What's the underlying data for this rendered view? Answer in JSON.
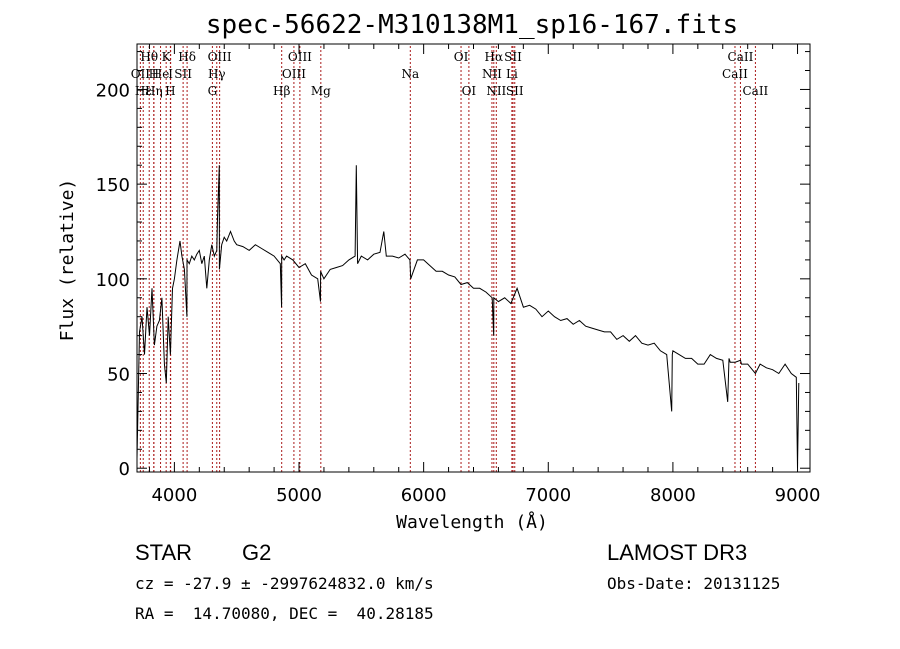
{
  "chart_data": {
    "type": "line",
    "title": "spec-56622-M310138M1_sp16-167.fits",
    "xlabel": "Wavelength (Å)",
    "ylabel": "Flux (relative)",
    "xlim": [
      3700,
      9100
    ],
    "ylim": [
      -2,
      224
    ],
    "xticks": [
      4000,
      5000,
      6000,
      7000,
      8000,
      9000
    ],
    "yticks": [
      0,
      50,
      100,
      150,
      200
    ],
    "grid": false,
    "series": [
      {
        "name": "flux",
        "x": [
          3700,
          3720,
          3740,
          3760,
          3780,
          3800,
          3820,
          3840,
          3860,
          3880,
          3900,
          3920,
          3935,
          3950,
          3968,
          3985,
          4000,
          4020,
          4045,
          4060,
          4080,
          4100,
          4101,
          4120,
          4140,
          4160,
          4180,
          4200,
          4220,
          4240,
          4260,
          4280,
          4300,
          4320,
          4340,
          4345,
          4360,
          4361,
          4380,
          4400,
          4420,
          4450,
          4480,
          4500,
          4550,
          4600,
          4650,
          4700,
          4750,
          4800,
          4850,
          4860,
          4861,
          4880,
          4900,
          4950,
          5000,
          5050,
          5100,
          5150,
          5172,
          5173,
          5200,
          5250,
          5300,
          5350,
          5400,
          5450,
          5460,
          5470,
          5500,
          5550,
          5600,
          5650,
          5680,
          5700,
          5750,
          5800,
          5850,
          5890,
          5896,
          5950,
          6000,
          6050,
          6100,
          6150,
          6200,
          6250,
          6300,
          6350,
          6400,
          6450,
          6500,
          6550,
          6562,
          6563,
          6600,
          6650,
          6700,
          6750,
          6800,
          6850,
          6900,
          6950,
          7000,
          7050,
          7100,
          7150,
          7200,
          7250,
          7300,
          7350,
          7400,
          7450,
          7500,
          7550,
          7600,
          7650,
          7700,
          7750,
          7800,
          7850,
          7900,
          7950,
          7990,
          7995,
          8000,
          8050,
          8100,
          8150,
          8200,
          8250,
          8300,
          8350,
          8400,
          8440,
          8450,
          8460,
          8500,
          8542,
          8550,
          8600,
          8662,
          8700,
          8750,
          8800,
          8850,
          8900,
          8950,
          8990,
          9000,
          9010
        ],
        "y": [
          5,
          72,
          80,
          60,
          85,
          70,
          95,
          65,
          75,
          78,
          90,
          55,
          45,
          80,
          60,
          95,
          100,
          110,
          120,
          112,
          105,
          80,
          110,
          108,
          112,
          110,
          113,
          115,
          108,
          112,
          95,
          110,
          118,
          112,
          115,
          130,
          160,
          105,
          118,
          122,
          120,
          125,
          120,
          118,
          117,
          115,
          118,
          116,
          114,
          112,
          108,
          85,
          112,
          110,
          112,
          110,
          106,
          108,
          102,
          100,
          88,
          104,
          100,
          105,
          106,
          107,
          110,
          112,
          160,
          108,
          112,
          110,
          113,
          114,
          125,
          112,
          112,
          111,
          113,
          110,
          100,
          110,
          110,
          107,
          104,
          104,
          102,
          101,
          97,
          98,
          95,
          95,
          93,
          90,
          70,
          90,
          88,
          90,
          87,
          95,
          85,
          86,
          84,
          80,
          83,
          80,
          78,
          79,
          76,
          78,
          75,
          74,
          73,
          72,
          72,
          68,
          70,
          67,
          70,
          66,
          65,
          66,
          62,
          60,
          30,
          60,
          62,
          60,
          58,
          58,
          55,
          55,
          60,
          58,
          57,
          35,
          58,
          56,
          56,
          57,
          55,
          55,
          50,
          55,
          53,
          52,
          50,
          55,
          50,
          48,
          0,
          45
        ]
      }
    ],
    "spectral_lines": [
      {
        "label": "Hθ",
        "wavelength": 3798,
        "row": 0
      },
      {
        "label": "K",
        "wavelength": 3934,
        "row": 0
      },
      {
        "label": "Hδ",
        "wavelength": 4102,
        "row": 0
      },
      {
        "label": "OIII",
        "wavelength": 4363,
        "row": 0
      },
      {
        "label": "OIII",
        "wavelength": 5007,
        "row": 0
      },
      {
        "label": "OI",
        "wavelength": 6300,
        "row": 0
      },
      {
        "label": "Hα",
        "wavelength": 6563,
        "row": 0
      },
      {
        "label": "SII",
        "wavelength": 6717,
        "row": 0
      },
      {
        "label": "CaII",
        "wavelength": 8542,
        "row": 0
      },
      {
        "label": "OII",
        "wavelength": 3727,
        "row": 1
      },
      {
        "label": "H",
        "wavelength": 3835,
        "row": 1
      },
      {
        "label": "He",
        "wavelength": 3889,
        "row": 1
      },
      {
        "label": "I",
        "wavelength": 3970,
        "row": 1
      },
      {
        "label": "SII",
        "wavelength": 4070,
        "row": 1
      },
      {
        "label": "Hγ",
        "wavelength": 4340,
        "row": 1
      },
      {
        "label": "OIII",
        "wavelength": 4959,
        "row": 1
      },
      {
        "label": "Na",
        "wavelength": 5893,
        "row": 1
      },
      {
        "label": "NII",
        "wavelength": 6548,
        "row": 1
      },
      {
        "label": "Li",
        "wavelength": 6708,
        "row": 1
      },
      {
        "label": "CaII",
        "wavelength": 8498,
        "row": 1
      },
      {
        "label": "Hε",
        "wavelength": 3750,
        "row": 2
      },
      {
        "label": "Hη",
        "wavelength": 3835,
        "row": 2
      },
      {
        "label": "H",
        "wavelength": 3968,
        "row": 2
      },
      {
        "label": "G",
        "wavelength": 4305,
        "row": 2
      },
      {
        "label": "Hβ",
        "wavelength": 4861,
        "row": 2
      },
      {
        "label": "Mg",
        "wavelength": 5175,
        "row": 2
      },
      {
        "label": "OI",
        "wavelength": 6363,
        "row": 2
      },
      {
        "label": "NII",
        "wavelength": 6583,
        "row": 2
      },
      {
        "label": "SII",
        "wavelength": 6731,
        "row": 2
      },
      {
        "label": "CaII",
        "wavelength": 8662,
        "row": 2
      }
    ]
  },
  "info": {
    "object_class": "STAR",
    "subclass": "G2",
    "survey": "LAMOST DR3",
    "cz": "cz = -27.9 ± -2997624832.0 km/s",
    "obs_date": "Obs-Date: 20131125",
    "radec": "RA =  14.70080, DEC =  40.28185"
  },
  "colors": {
    "spectrum": "#000000",
    "line_marker": "#aa1a1a",
    "axes": "#000000"
  }
}
